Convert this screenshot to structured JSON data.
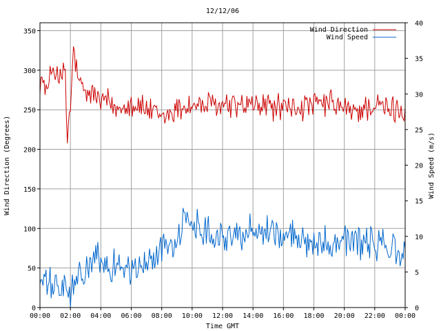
{
  "chart_data": {
    "type": "line",
    "title": "12/12/06",
    "xlabel": "Time GMT",
    "ylabel_left": "Wind Direction (Degrees)",
    "ylabel_right": "Wind Speed (m/s)",
    "x_ticks": [
      "00:00",
      "02:00",
      "04:00",
      "06:00",
      "08:00",
      "10:00",
      "12:00",
      "14:00",
      "16:00",
      "18:00",
      "20:00",
      "22:00",
      "00:00"
    ],
    "x_range_hours": [
      0,
      24
    ],
    "ylim_left": [
      0,
      360
    ],
    "yticks_left": [
      0,
      50,
      100,
      150,
      200,
      250,
      300,
      350
    ],
    "ylim_right": [
      0,
      40
    ],
    "yticks_right": [
      0,
      5,
      10,
      15,
      20,
      25,
      30,
      35,
      40
    ],
    "grid": true,
    "legend_position": "top-right",
    "series": [
      {
        "name": "Wind Direction",
        "axis": "left",
        "color": "#cc0000",
        "anchors": [
          [
            0.0,
            290
          ],
          [
            0.3,
            280
          ],
          [
            0.5,
            270
          ],
          [
            0.8,
            305
          ],
          [
            1.0,
            300
          ],
          [
            1.2,
            295
          ],
          [
            1.4,
            285
          ],
          [
            1.7,
            305
          ],
          [
            1.75,
            200
          ],
          [
            1.9,
            240
          ],
          [
            2.0,
            245
          ],
          [
            2.2,
            330
          ],
          [
            2.4,
            300
          ],
          [
            2.6,
            280
          ],
          [
            2.8,
            275
          ],
          [
            3.0,
            270
          ],
          [
            3.5,
            270
          ],
          [
            4.0,
            260
          ],
          [
            4.5,
            260
          ],
          [
            5.0,
            250
          ],
          [
            5.5,
            258
          ],
          [
            6.0,
            258
          ],
          [
            6.5,
            255
          ],
          [
            7.0,
            250
          ],
          [
            7.5,
            245
          ],
          [
            8.0,
            238
          ],
          [
            8.5,
            245
          ],
          [
            9.0,
            250
          ],
          [
            9.5,
            255
          ],
          [
            10.0,
            255
          ],
          [
            11.0,
            255
          ],
          [
            12.0,
            255
          ],
          [
            13.0,
            255
          ],
          [
            14.0,
            255
          ],
          [
            15.0,
            255
          ],
          [
            16.0,
            252
          ],
          [
            17.0,
            252
          ],
          [
            18.0,
            255
          ],
          [
            19.0,
            258
          ],
          [
            20.0,
            252
          ],
          [
            20.5,
            245
          ],
          [
            21.0,
            250
          ],
          [
            22.0,
            255
          ],
          [
            23.0,
            250
          ],
          [
            24.0,
            250
          ]
        ],
        "amp": 14
      },
      {
        "name": "Wind Speed",
        "axis": "right",
        "color": "#0066cc",
        "anchors": [
          [
            0.0,
            4.0
          ],
          [
            0.5,
            3.0
          ],
          [
            1.0,
            3.0
          ],
          [
            1.5,
            2.5
          ],
          [
            2.0,
            2.0
          ],
          [
            2.5,
            4.0
          ],
          [
            3.0,
            5.0
          ],
          [
            3.5,
            7.0
          ],
          [
            4.0,
            6.0
          ],
          [
            4.5,
            6.0
          ],
          [
            5.0,
            6.0
          ],
          [
            5.5,
            6.0
          ],
          [
            6.0,
            5.0
          ],
          [
            6.5,
            5.5
          ],
          [
            7.0,
            6.0
          ],
          [
            7.5,
            7.0
          ],
          [
            8.0,
            8.5
          ],
          [
            8.5,
            9.0
          ],
          [
            9.0,
            9.5
          ],
          [
            9.5,
            12.0
          ],
          [
            10.0,
            12.0
          ],
          [
            11.0,
            11.0
          ],
          [
            12.0,
            10.0
          ],
          [
            13.0,
            10.0
          ],
          [
            14.0,
            11.0
          ],
          [
            15.0,
            11.0
          ],
          [
            16.0,
            10.0
          ],
          [
            17.0,
            9.5
          ],
          [
            18.0,
            9.5
          ],
          [
            19.0,
            9.0
          ],
          [
            20.0,
            10.0
          ],
          [
            21.0,
            9.0
          ],
          [
            22.0,
            9.0
          ],
          [
            23.0,
            8.5
          ],
          [
            24.0,
            7.0
          ]
        ],
        "amp": 1.9
      }
    ]
  }
}
